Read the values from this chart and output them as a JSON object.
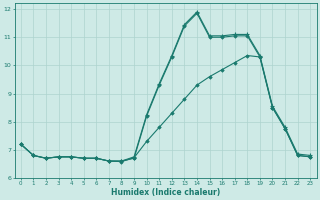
{
  "xlabel": "Humidex (Indice chaleur)",
  "bg_color": "#ceeae6",
  "line_color": "#1a7a6e",
  "grid_color": "#aed4cf",
  "xlim": [
    -0.5,
    23.5
  ],
  "ylim": [
    6,
    12.2
  ],
  "xticks": [
    0,
    1,
    2,
    3,
    4,
    5,
    6,
    7,
    8,
    9,
    10,
    11,
    12,
    13,
    14,
    15,
    16,
    17,
    18,
    19,
    20,
    21,
    22,
    23
  ],
  "yticks": [
    6,
    7,
    8,
    9,
    10,
    11,
    12
  ],
  "series1_x": [
    0,
    1,
    2,
    3,
    4,
    5,
    6,
    7,
    8,
    9,
    10,
    11,
    12,
    13,
    14,
    15,
    16,
    17,
    18,
    19,
    20,
    21,
    22,
    23
  ],
  "series1_y": [
    7.2,
    6.8,
    6.7,
    6.75,
    6.75,
    6.7,
    6.7,
    6.6,
    6.6,
    6.7,
    8.2,
    9.3,
    10.3,
    11.4,
    11.85,
    11.0,
    11.0,
    11.05,
    11.05,
    10.3,
    8.5,
    7.75,
    6.8,
    6.75
  ],
  "series2_x": [
    0,
    1,
    2,
    3,
    4,
    5,
    6,
    7,
    8,
    9,
    10,
    11,
    12,
    13,
    14,
    15,
    16,
    17,
    18,
    19,
    20,
    21,
    22,
    23
  ],
  "series2_y": [
    7.2,
    6.8,
    6.7,
    6.75,
    6.75,
    6.7,
    6.7,
    6.6,
    6.6,
    6.75,
    8.25,
    9.35,
    10.35,
    11.45,
    11.9,
    11.05,
    11.05,
    11.1,
    11.1,
    10.35,
    8.55,
    7.8,
    6.85,
    6.8
  ],
  "series3_x": [
    0,
    1,
    2,
    3,
    4,
    5,
    6,
    7,
    8,
    9,
    10,
    11,
    12,
    13,
    14,
    15,
    16,
    17,
    18,
    19,
    20,
    21,
    22,
    23
  ],
  "series3_y": [
    7.2,
    6.8,
    6.7,
    6.75,
    6.75,
    6.7,
    6.7,
    6.6,
    6.58,
    6.72,
    7.3,
    7.8,
    8.3,
    8.8,
    9.3,
    9.6,
    9.85,
    10.1,
    10.35,
    10.3,
    8.5,
    7.75,
    6.8,
    6.75
  ]
}
